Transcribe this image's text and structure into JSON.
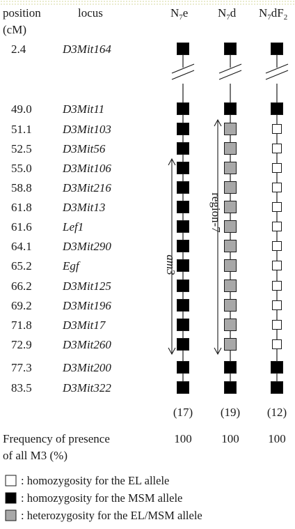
{
  "header": {
    "position_line1": "position",
    "position_line2": "(cM)",
    "locus": "locus",
    "strains": [
      {
        "base": "N",
        "sub": "7",
        "tail": "e"
      },
      {
        "base": "N",
        "sub": "7",
        "tail": "d"
      },
      {
        "base": "N",
        "sub": "7",
        "tail": "dF",
        "sub2": "2"
      }
    ]
  },
  "rows": [
    {
      "position": "2.4",
      "locus": "D3Mit164",
      "g": [
        "MSM",
        "MSM",
        "MSM"
      ]
    },
    {
      "position": "49.0",
      "locus": "D3Mit11",
      "g": [
        "MSM",
        "MSM",
        "MSM"
      ]
    },
    {
      "position": "51.1",
      "locus": "D3Mit103",
      "g": [
        "MSM",
        "HET",
        "EL"
      ]
    },
    {
      "position": "52.5",
      "locus": "D3Mit56",
      "g": [
        "MSM",
        "HET",
        "EL"
      ]
    },
    {
      "position": "55.0",
      "locus": "D3Mit106",
      "g": [
        "MSM",
        "HET",
        "EL"
      ]
    },
    {
      "position": "58.8",
      "locus": "D3Mit216",
      "g": [
        "MSM",
        "HET",
        "EL"
      ]
    },
    {
      "position": "61.8",
      "locus": "D3Mit13",
      "g": [
        "MSM",
        "HET",
        "EL"
      ]
    },
    {
      "position": "61.6",
      "locus": "Lef1",
      "g": [
        "MSM",
        "HET",
        "EL"
      ]
    },
    {
      "position": "64.1",
      "locus": "D3Mit290",
      "g": [
        "MSM",
        "HET",
        "EL"
      ]
    },
    {
      "position": "65.2",
      "locus": "Egf",
      "g": [
        "MSM",
        "HET",
        "EL"
      ]
    },
    {
      "position": "66.2",
      "locus": "D3Mit125",
      "g": [
        "MSM",
        "HET",
        "EL"
      ]
    },
    {
      "position": "69.2",
      "locus": "D3Mit196",
      "g": [
        "MSM",
        "HET",
        "EL"
      ]
    },
    {
      "position": "71.8",
      "locus": "D3Mit17",
      "g": [
        "MSM",
        "HET",
        "EL"
      ]
    },
    {
      "position": "72.9",
      "locus": "D3Mit260",
      "g": [
        "MSM",
        "HET",
        "EL"
      ]
    },
    {
      "position": "77.3",
      "locus": "D3Mit200",
      "g": [
        "MSM",
        "MSM",
        "MSM"
      ]
    },
    {
      "position": "83.5",
      "locus": "D3Mit322",
      "g": [
        "MSM",
        "MSM",
        "MSM"
      ]
    }
  ],
  "counts": [
    "(17)",
    "(19)",
    "(12)"
  ],
  "frequency": {
    "label_line1": "Frequency of presence",
    "label_line2": "of all M3 (%)",
    "values": [
      "100",
      "100",
      "100"
    ]
  },
  "regions": [
    {
      "label": "am3"
    },
    {
      "label": "region-7"
    }
  ],
  "legend": [
    {
      "type": "EL",
      "text": ": homozygosity for the EL allele"
    },
    {
      "type": "MSM",
      "text": ": homozygosity for the MSM allele"
    },
    {
      "type": "HET",
      "text": ": heterozygosity for the EL/MSM allele"
    }
  ],
  "colors": {
    "MSM": "#000000",
    "HET": "#a8a8a8",
    "EL": "#ffffff",
    "stroke": "#1a1a1a"
  }
}
